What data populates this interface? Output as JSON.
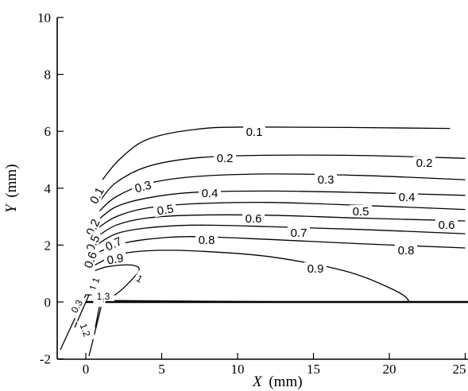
{
  "chart_data": {
    "type": "contour",
    "xlabel": "X",
    "xlabel_unit": "(mm)",
    "ylabel": "Y",
    "ylabel_unit": "(mm)",
    "xlim": [
      -2,
      25
    ],
    "ylim": [
      -2,
      10
    ],
    "x_ticks": [
      0,
      5,
      10,
      15,
      20,
      25
    ],
    "x_tick_labels": [
      "0",
      "5",
      "10",
      "15",
      "20",
      "25"
    ],
    "y_ticks": [
      -2,
      0,
      2,
      4,
      6,
      8,
      10
    ],
    "y_tick_labels": [
      "-2",
      "0",
      "2",
      "4",
      "6",
      "8",
      "10"
    ],
    "grid": false,
    "levels": [
      {
        "value": "0.1",
        "points": [
          [
            1.1,
            4.3
          ],
          [
            2.2,
            5.0
          ],
          [
            4.0,
            5.7
          ],
          [
            7.0,
            6.05
          ],
          [
            11.0,
            6.15
          ],
          [
            24.0,
            6.1
          ]
        ]
      },
      {
        "value": "0.2",
        "points": [
          [
            1.0,
            3.6
          ],
          [
            2.0,
            4.2
          ],
          [
            4.0,
            4.75
          ],
          [
            7.0,
            5.05
          ],
          [
            11.0,
            5.15
          ],
          [
            18.0,
            5.15
          ],
          [
            25.0,
            5.05
          ]
        ]
      },
      {
        "value": "0.3",
        "points": [
          [
            0.9,
            3.2
          ],
          [
            2.0,
            3.7
          ],
          [
            4.0,
            4.15
          ],
          [
            7.0,
            4.4
          ],
          [
            12.0,
            4.5
          ],
          [
            18.0,
            4.45
          ],
          [
            25.0,
            4.3
          ]
        ]
      },
      {
        "value": "0.4",
        "points": [
          [
            0.85,
            2.9
          ],
          [
            2.0,
            3.35
          ],
          [
            4.0,
            3.65
          ],
          [
            7.0,
            3.85
          ],
          [
            12.0,
            3.9
          ],
          [
            18.0,
            3.85
          ],
          [
            25.0,
            3.75
          ]
        ]
      },
      {
        "value": "0.5",
        "points": [
          [
            0.8,
            2.6
          ],
          [
            2.0,
            3.0
          ],
          [
            4.0,
            3.3
          ],
          [
            7.0,
            3.45
          ],
          [
            12.0,
            3.5
          ],
          [
            18.0,
            3.4
          ],
          [
            25.0,
            3.25
          ]
        ]
      },
      {
        "value": "0.6",
        "points": [
          [
            0.75,
            2.3
          ],
          [
            2.0,
            2.7
          ],
          [
            4.0,
            2.95
          ],
          [
            7.0,
            3.05
          ],
          [
            12.0,
            3.05
          ],
          [
            18.0,
            2.95
          ],
          [
            25.0,
            2.85
          ]
        ]
      },
      {
        "value": "0.7",
        "points": [
          [
            0.7,
            2.0
          ],
          [
            2.0,
            2.4
          ],
          [
            4.0,
            2.6
          ],
          [
            7.0,
            2.7
          ],
          [
            12.0,
            2.65
          ],
          [
            18.0,
            2.55
          ],
          [
            25.0,
            2.4
          ]
        ]
      },
      {
        "value": "0.8",
        "points": [
          [
            0.65,
            1.7
          ],
          [
            2.0,
            2.0
          ],
          [
            4.0,
            2.2
          ],
          [
            7.0,
            2.3
          ],
          [
            12.0,
            2.2
          ],
          [
            18.0,
            2.05
          ],
          [
            25.0,
            1.9
          ]
        ]
      },
      {
        "value": "0.9",
        "points": [
          [
            0.6,
            1.3
          ],
          [
            2.0,
            1.65
          ],
          [
            4.0,
            1.8
          ],
          [
            7.0,
            1.8
          ],
          [
            12.0,
            1.6
          ],
          [
            17.0,
            1.1
          ],
          [
            20.0,
            0.5
          ],
          [
            21.2,
            0.1
          ],
          [
            20.5,
            0.0
          ],
          [
            15.0,
            0.0
          ],
          [
            1.5,
            0.05
          ]
        ]
      },
      {
        "value": "1",
        "points": [
          [
            0.6,
            1.1
          ],
          [
            1.5,
            1.25
          ],
          [
            3.0,
            1.3
          ],
          [
            3.5,
            1.1
          ],
          [
            2.5,
            0.5
          ],
          [
            1.8,
            0.2
          ],
          [
            1.5,
            0.05
          ]
        ]
      },
      {
        "value": "1.1",
        "points": [
          [
            0.3,
            0.9
          ],
          [
            0.6,
            1.0
          ],
          [
            0.8,
            0.6
          ],
          [
            0.7,
            0.2
          ],
          [
            0.4,
            0.05
          ]
        ]
      },
      {
        "value": "1.3",
        "points": [
          [
            0.4,
            0.6
          ],
          [
            0.55,
            0.65
          ],
          [
            0.65,
            0.3
          ],
          [
            0.5,
            0.05
          ]
        ]
      }
    ],
    "labels_printed": [
      "0.1",
      "0.1",
      "0.2",
      "0.2",
      "0.2",
      "0.3",
      "0.3",
      "0.3",
      "0.4",
      "0.4",
      "0.5",
      "0.5",
      "0.5",
      "0.6",
      "0.6",
      "0.6",
      "0.7",
      "0.7",
      "0.8",
      "0.8",
      "0.9",
      "0.9",
      "1",
      "1.1",
      "1.3",
      "1.3",
      "0.3",
      "1.2"
    ]
  }
}
